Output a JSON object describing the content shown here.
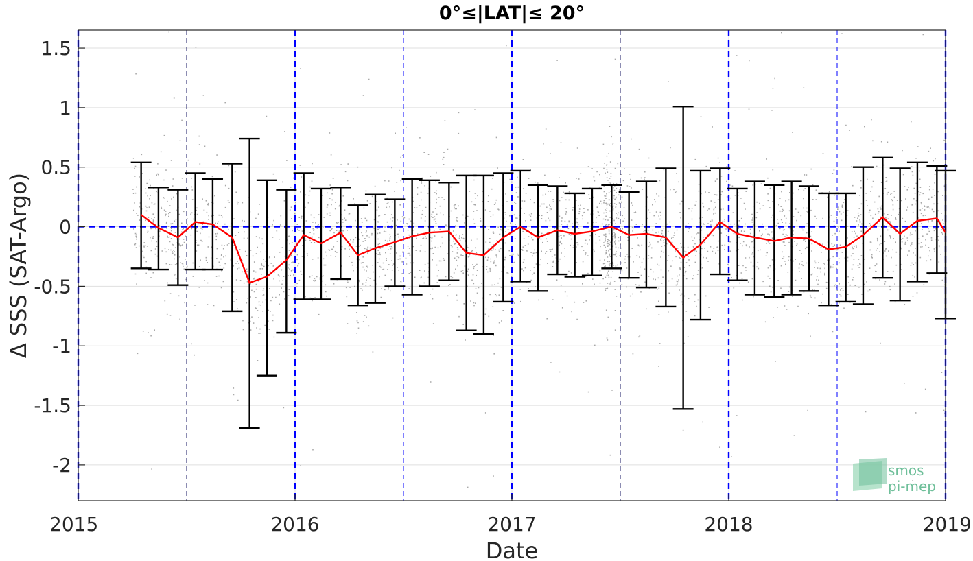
{
  "chart_data": {
    "type": "line",
    "title": "0°≤|LAT|≤ 20°",
    "xlabel": "Date",
    "ylabel": "Δ SSS (SAT-Argo)",
    "xlim": [
      2015.0,
      2019.0
    ],
    "ylim": [
      -2.3,
      1.65
    ],
    "xticks": [
      2015,
      2016,
      2017,
      2018,
      2019
    ],
    "xtick_labels": [
      "2015",
      "2016",
      "2017",
      "2018",
      "2019"
    ],
    "yticks": [
      1.5,
      1,
      0.5,
      0,
      -0.5,
      -1,
      -1.5,
      -2
    ],
    "ytick_labels": [
      "1.5",
      "1",
      "0.5",
      "0",
      "-0.5",
      "-1",
      "-1.5",
      "-2"
    ],
    "grid": true,
    "colors": {
      "mean_line": "#ff0000",
      "error_bars": "#000000",
      "scatter": "#8c8c8c",
      "reference_lines": "#0000ff",
      "logo": "#6fbf9a"
    },
    "reference_lines": {
      "zero_line": 0,
      "year_boundaries": [
        2015.0,
        2016.0,
        2017.0,
        2018.0,
        2019.0
      ],
      "half_year_lines": [
        2015.5,
        2016.5,
        2017.5,
        2018.5
      ]
    },
    "series": [
      {
        "type": "line_with_error_bars",
        "x": [
          2015.29,
          2015.37,
          2015.46,
          2015.54,
          2015.62,
          2015.71,
          2015.79,
          2015.87,
          2015.96,
          2016.04,
          2016.12,
          2016.21,
          2016.29,
          2016.37,
          2016.46,
          2016.54,
          2016.62,
          2016.71,
          2016.79,
          2016.87,
          2016.96,
          2017.04,
          2017.12,
          2017.21,
          2017.29,
          2017.37,
          2017.46,
          2017.54,
          2017.62,
          2017.71,
          2017.79,
          2017.87,
          2017.96,
          2018.04,
          2018.12,
          2018.21,
          2018.29,
          2018.37,
          2018.46,
          2018.54,
          2018.62,
          2018.71,
          2018.79,
          2018.87,
          2018.96,
          2019.0
        ],
        "mean": [
          0.1,
          -0.01,
          -0.09,
          0.04,
          0.02,
          -0.09,
          -0.47,
          -0.42,
          -0.28,
          -0.07,
          -0.14,
          -0.05,
          -0.24,
          -0.18,
          -0.13,
          -0.08,
          -0.05,
          -0.04,
          -0.22,
          -0.24,
          -0.09,
          0.0,
          -0.09,
          -0.03,
          -0.06,
          -0.04,
          0.0,
          -0.07,
          -0.06,
          -0.09,
          -0.26,
          -0.15,
          0.04,
          -0.06,
          -0.09,
          -0.12,
          -0.09,
          -0.1,
          -0.19,
          -0.17,
          -0.07,
          0.08,
          -0.06,
          0.05,
          0.07,
          -0.05
        ],
        "upper": [
          0.54,
          0.33,
          0.31,
          0.45,
          0.4,
          0.53,
          0.74,
          0.39,
          0.31,
          0.45,
          0.32,
          0.33,
          0.18,
          0.27,
          0.23,
          0.4,
          0.39,
          0.37,
          0.43,
          0.43,
          0.45,
          0.47,
          0.35,
          0.34,
          0.28,
          0.32,
          0.35,
          0.29,
          0.38,
          0.49,
          1.01,
          0.47,
          0.49,
          0.32,
          0.38,
          0.35,
          0.38,
          0.34,
          0.28,
          0.28,
          0.5,
          0.58,
          0.49,
          0.54,
          0.51,
          0.47
        ],
        "lower": [
          -0.35,
          -0.36,
          -0.49,
          -0.36,
          -0.36,
          -0.71,
          -1.69,
          -1.25,
          -0.89,
          -0.61,
          -0.61,
          -0.44,
          -0.66,
          -0.64,
          -0.5,
          -0.57,
          -0.5,
          -0.45,
          -0.87,
          -0.9,
          -0.63,
          -0.46,
          -0.54,
          -0.4,
          -0.42,
          -0.41,
          -0.35,
          -0.43,
          -0.51,
          -0.67,
          -1.53,
          -0.78,
          -0.4,
          -0.45,
          -0.57,
          -0.59,
          -0.57,
          -0.54,
          -0.66,
          -0.63,
          -0.65,
          -0.43,
          -0.62,
          -0.46,
          -0.39,
          -0.77
        ]
      }
    ],
    "scatter": {
      "description": "dense cloud of individual match-up points",
      "x_range": [
        2015.25,
        2019.0
      ],
      "y_typical_range": [
        -0.8,
        0.8
      ],
      "count_approx": 5000
    },
    "logo": {
      "line1": "smos",
      "line2": "pi-mep"
    }
  }
}
